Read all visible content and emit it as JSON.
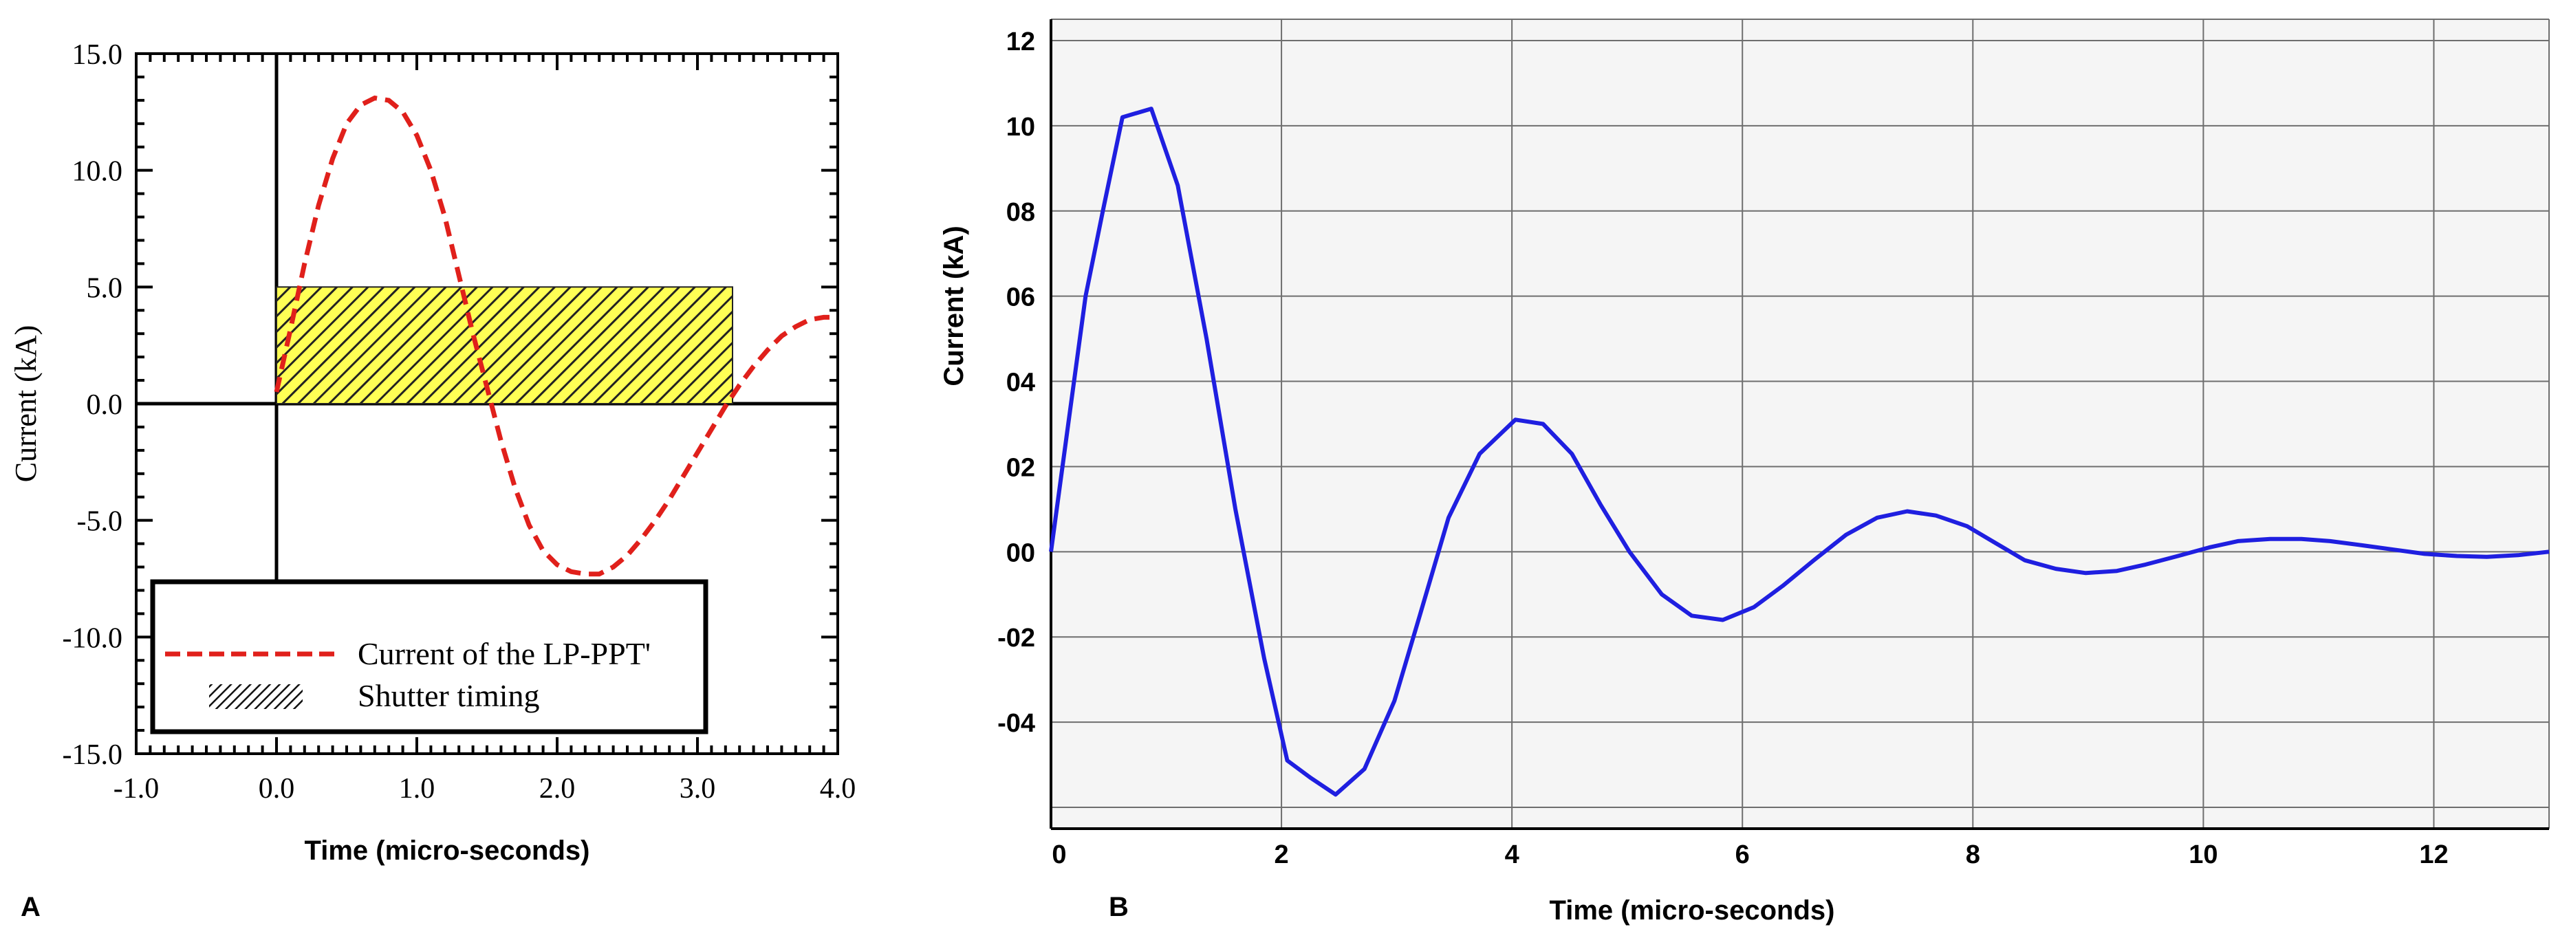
{
  "panel_labels": [
    "A",
    "B"
  ],
  "chart_data": [
    {
      "type": "line",
      "panel": "A",
      "xlabel": "Time (micro-seconds)",
      "ylabel": "Current (kA)",
      "xlim": [
        -1.0,
        4.0
      ],
      "ylim": [
        -15.0,
        15.0
      ],
      "x_ticks": [
        "-1.0",
        "0.0",
        "1.0",
        "2.0",
        "3.0",
        "4.0"
      ],
      "y_ticks": [
        "15.0",
        "10.0",
        "5.0",
        "0.0",
        "-5.0",
        "-10.0",
        "-15.0"
      ],
      "grid": false,
      "legend": {
        "position": "bottom",
        "entries": [
          "Current of the LP-PPT'",
          "Shutter timing"
        ]
      },
      "series": [
        {
          "name": "Current of the LP-PPT'",
          "style": "dashed",
          "color": "#e0201b",
          "x": [
            0.0,
            0.1,
            0.2,
            0.3,
            0.4,
            0.5,
            0.6,
            0.7,
            0.8,
            0.9,
            1.0,
            1.1,
            1.2,
            1.3,
            1.4,
            1.5,
            1.6,
            1.7,
            1.8,
            1.9,
            2.0,
            2.1,
            2.2,
            2.3,
            2.4,
            2.5,
            2.6,
            2.7,
            2.8,
            2.9,
            3.0,
            3.1,
            3.2,
            3.3,
            3.4,
            3.5,
            3.6,
            3.7,
            3.8,
            3.9,
            4.0
          ],
          "y": [
            0.5,
            3.2,
            6.0,
            8.5,
            10.5,
            12.0,
            12.8,
            13.1,
            13.0,
            12.5,
            11.5,
            10.0,
            8.0,
            5.5,
            3.0,
            0.7,
            -1.6,
            -3.6,
            -5.2,
            -6.3,
            -6.9,
            -7.2,
            -7.3,
            -7.3,
            -7.0,
            -6.5,
            -5.8,
            -5.0,
            -4.1,
            -3.1,
            -2.1,
            -1.1,
            -0.1,
            0.8,
            1.6,
            2.3,
            2.9,
            3.3,
            3.6,
            3.7,
            3.7
          ]
        }
      ],
      "shutter": {
        "name": "Shutter timing",
        "x_start": 0.0,
        "x_end": 3.25,
        "y_low": 0.0,
        "y_high": 5.0,
        "fill": "#ffff55",
        "hatch": "#222222"
      }
    },
    {
      "type": "line",
      "panel": "B",
      "xlabel": "Time (micro-seconds)",
      "ylabel": "Current (kA)",
      "xlim": [
        0,
        13
      ],
      "ylim": [
        -6.5,
        12.5
      ],
      "x_ticks": [
        "0",
        "2",
        "4",
        "6",
        "8",
        "10",
        "12"
      ],
      "y_ticks": [
        "12",
        "10",
        "08",
        "06",
        "04",
        "02",
        "00",
        "-02",
        "-04"
      ],
      "grid": true,
      "series": [
        {
          "color": "#1f1fe0",
          "x": [
            0.0,
            0.15,
            0.3,
            0.45,
            0.62,
            0.87,
            1.1,
            1.35,
            1.6,
            1.85,
            2.05,
            2.25,
            2.47,
            2.72,
            2.98,
            3.2,
            3.45,
            3.72,
            4.03,
            4.27,
            4.52,
            4.77,
            5.02,
            5.3,
            5.56,
            5.83,
            6.1,
            6.35,
            6.62,
            6.9,
            7.17,
            7.43,
            7.68,
            7.95,
            8.2,
            8.45,
            8.72,
            8.98,
            9.25,
            9.5,
            9.78,
            10.05,
            10.3,
            10.58,
            10.85,
            11.1,
            11.38,
            11.65,
            11.92,
            12.2,
            12.46,
            12.73,
            13.0
          ],
          "y": [
            0.0,
            3.0,
            6.0,
            8.0,
            10.2,
            10.4,
            8.6,
            5.0,
            1.0,
            -2.5,
            -4.9,
            -5.3,
            -5.7,
            -5.1,
            -3.5,
            -1.5,
            0.8,
            2.3,
            3.1,
            3.0,
            2.3,
            1.1,
            0.0,
            -1.0,
            -1.5,
            -1.6,
            -1.3,
            -0.8,
            -0.2,
            0.4,
            0.8,
            0.95,
            0.85,
            0.6,
            0.2,
            -0.2,
            -0.4,
            -0.5,
            -0.45,
            -0.3,
            -0.1,
            0.1,
            0.25,
            0.3,
            0.3,
            0.25,
            0.15,
            0.05,
            -0.05,
            -0.1,
            -0.12,
            -0.08,
            0.0
          ]
        }
      ]
    }
  ]
}
